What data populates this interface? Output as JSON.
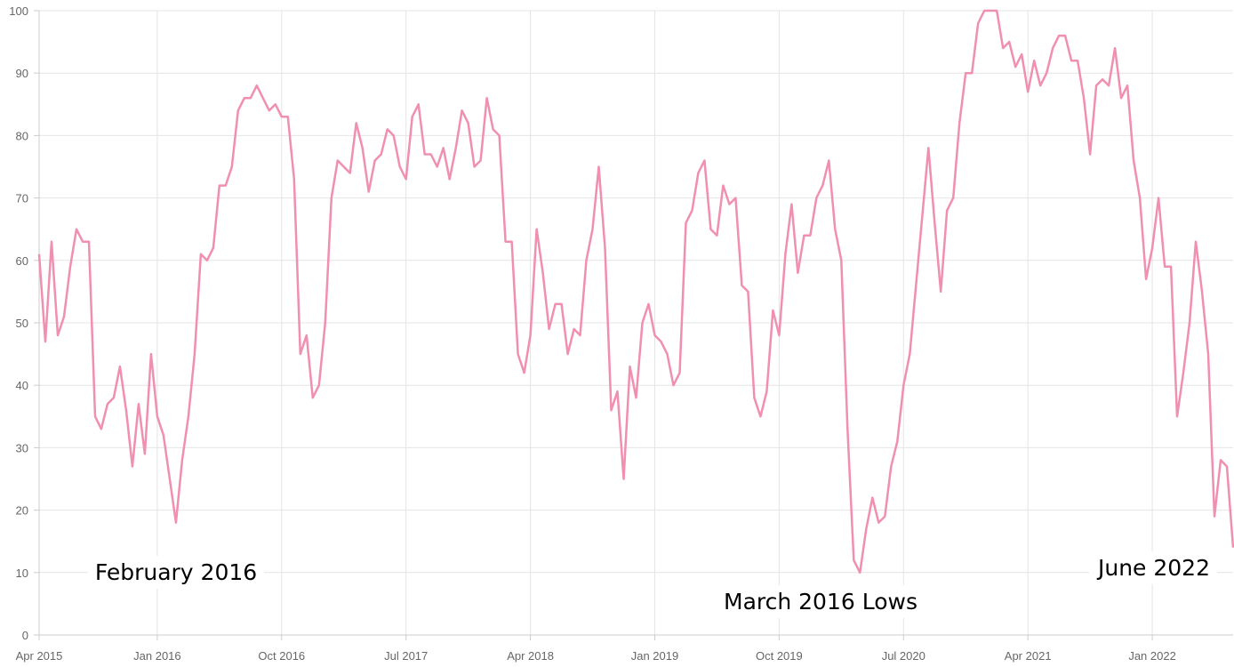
{
  "chart_data": {
    "type": "line",
    "color": "#f08fb0",
    "grid": true,
    "ylim": [
      0,
      100
    ],
    "yticks": [
      0,
      10,
      20,
      30,
      40,
      50,
      60,
      70,
      80,
      90,
      100
    ],
    "categories": [
      "Apr 2015",
      null,
      null,
      null,
      null,
      null,
      null,
      null,
      null,
      null,
      null,
      null,
      null,
      null,
      null,
      null,
      null,
      null,
      null,
      "Jan 2016",
      null,
      null,
      null,
      null,
      null,
      null,
      null,
      null,
      null,
      null,
      null,
      null,
      null,
      null,
      null,
      null,
      null,
      null,
      null,
      "Oct 2016",
      null,
      null,
      null,
      null,
      null,
      null,
      null,
      null,
      null,
      null,
      null,
      null,
      null,
      null,
      null,
      null,
      null,
      null,
      null,
      "Jul 2017",
      null,
      null,
      null,
      null,
      null,
      null,
      null,
      null,
      null,
      null,
      null,
      null,
      null,
      null,
      null,
      null,
      null,
      null,
      null,
      "Apr 2018",
      null,
      null,
      null,
      null,
      null,
      null,
      null,
      null,
      null,
      null,
      null,
      null,
      null,
      null,
      null,
      null,
      null,
      null,
      null,
      "Jan 2019",
      null,
      null,
      null,
      null,
      null,
      null,
      null,
      null,
      null,
      null,
      null,
      null,
      null,
      null,
      null,
      null,
      null,
      null,
      null,
      "Oct 2019",
      null,
      null,
      null,
      null,
      null,
      null,
      null,
      null,
      null,
      null,
      null,
      null,
      null,
      null,
      null,
      null,
      null,
      null,
      null,
      "Jul 2020",
      null,
      null,
      null,
      null,
      null,
      null,
      null,
      null,
      null,
      null,
      null,
      null,
      null,
      null,
      null,
      null,
      null,
      null,
      null,
      "Apr 2021",
      null,
      null,
      null,
      null,
      null,
      null,
      null,
      null,
      null,
      null,
      null,
      null,
      null,
      null,
      null,
      null,
      null,
      null,
      null,
      "Jan 2022",
      null,
      null,
      null,
      null,
      null,
      null,
      null,
      null,
      null,
      null,
      null,
      null,
      null
    ],
    "values": [
      61,
      47,
      63,
      48,
      51,
      59,
      65,
      63,
      63,
      35,
      33,
      37,
      38,
      43,
      36,
      27,
      37,
      29,
      45,
      35,
      32,
      25,
      18,
      28,
      35,
      45,
      61,
      60,
      62,
      72,
      72,
      75,
      84,
      86,
      86,
      88,
      86,
      84,
      85,
      83,
      83,
      73,
      45,
      48,
      38,
      40,
      50,
      70,
      76,
      75,
      74,
      82,
      78,
      71,
      76,
      77,
      81,
      80,
      75,
      73,
      83,
      85,
      77,
      77,
      75,
      78,
      73,
      78,
      84,
      82,
      75,
      76,
      86,
      81,
      80,
      63,
      63,
      45,
      42,
      48,
      65,
      58,
      49,
      53,
      53,
      45,
      49,
      48,
      60,
      65,
      75,
      62,
      36,
      39,
      25,
      43,
      38,
      50,
      53,
      48,
      47,
      45,
      40,
      42,
      66,
      68,
      74,
      76,
      65,
      64,
      72,
      69,
      70,
      56,
      55,
      38,
      35,
      39,
      52,
      48,
      61,
      69,
      58,
      64,
      64,
      70,
      72,
      76,
      65,
      60,
      33,
      12,
      10,
      17,
      22,
      18,
      19,
      27,
      31,
      40,
      45,
      56,
      67,
      78,
      66,
      55,
      68,
      70,
      82,
      90,
      90,
      98,
      100,
      100,
      100,
      94,
      95,
      91,
      93,
      87,
      92,
      88,
      90,
      94,
      96,
      96,
      92,
      92,
      86,
      77,
      88,
      89,
      88,
      94,
      86,
      88,
      76,
      70,
      57,
      62,
      70,
      59,
      59,
      35,
      42,
      50,
      63,
      55,
      45,
      19,
      28,
      27,
      14
    ],
    "annotations": [
      "February 2016",
      "March 2016 Lows",
      "June 2022"
    ]
  }
}
